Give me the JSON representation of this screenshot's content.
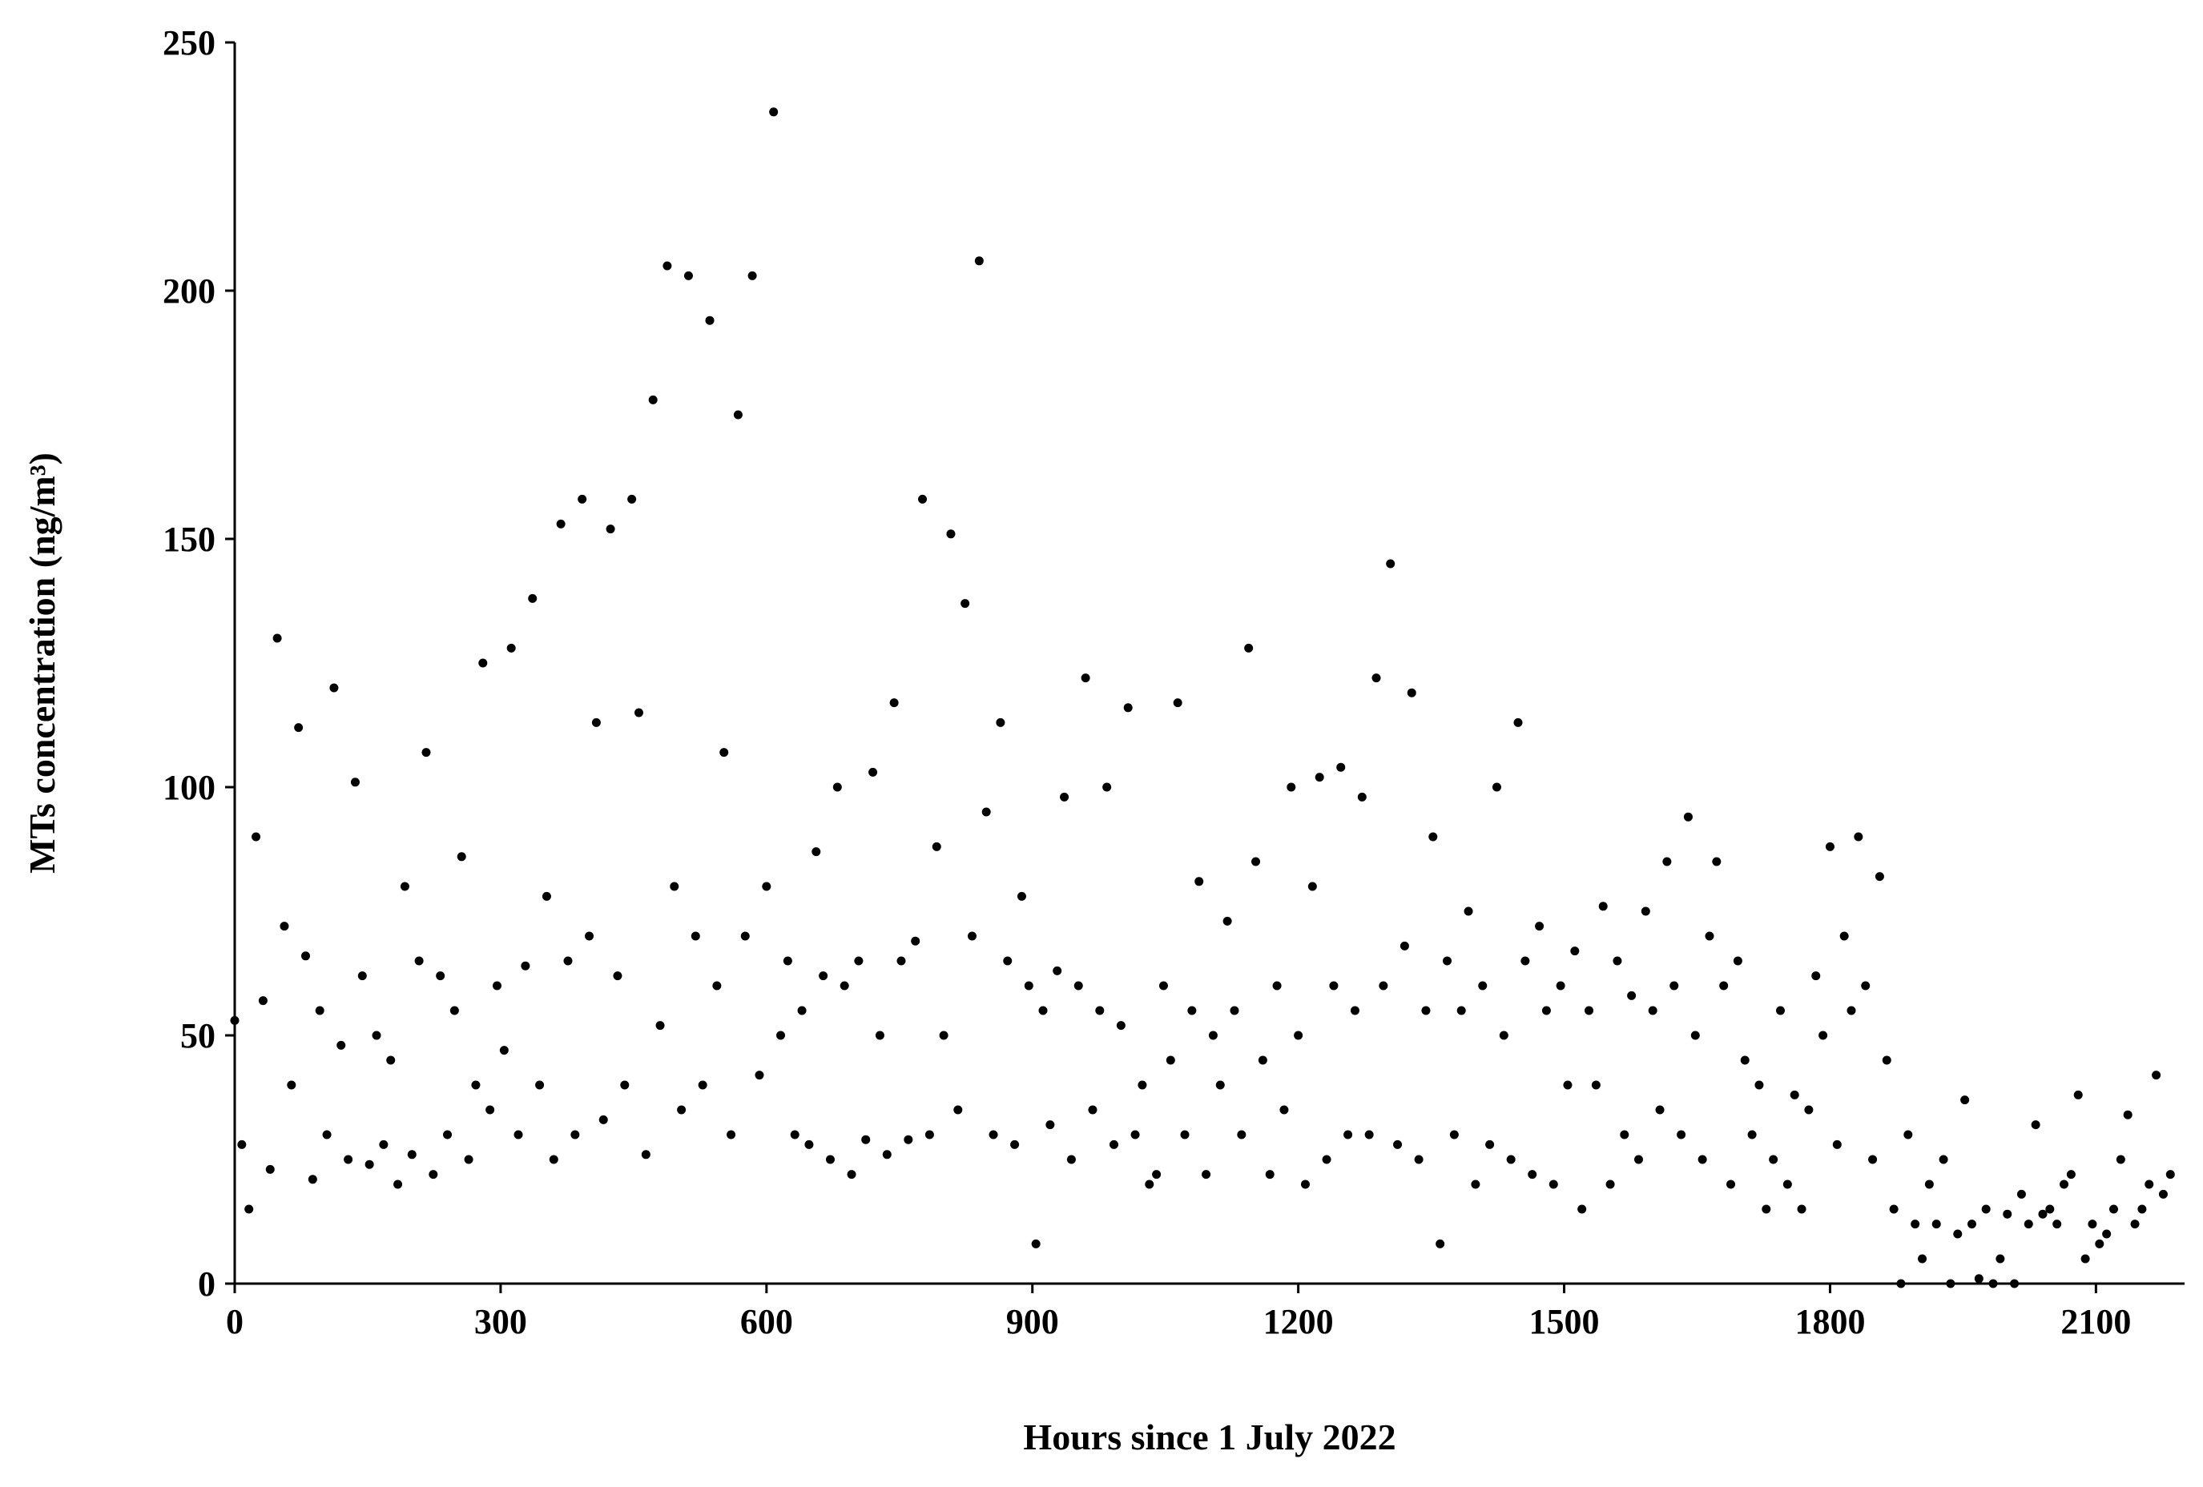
{
  "chart_data": {
    "type": "scatter",
    "xlabel": "Hours since 1 July 2022",
    "ylabel": "MTs concentration (ng/m³)",
    "color": "#000000",
    "xlim": [
      0,
      2200
    ],
    "ylim": [
      0,
      250
    ],
    "xticks": [
      0,
      300,
      600,
      900,
      1200,
      1500,
      1800,
      2100
    ],
    "yticks": [
      0,
      50,
      100,
      150,
      200,
      250
    ],
    "x": [
      0,
      8,
      16,
      24,
      32,
      40,
      48,
      56,
      64,
      72,
      80,
      88,
      96,
      104,
      112,
      120,
      128,
      136,
      144,
      152,
      160,
      168,
      176,
      184,
      192,
      200,
      208,
      216,
      224,
      232,
      240,
      248,
      256,
      264,
      272,
      280,
      288,
      296,
      304,
      312,
      320,
      328,
      336,
      344,
      352,
      360,
      368,
      376,
      384,
      392,
      400,
      408,
      416,
      424,
      432,
      440,
      448,
      456,
      464,
      472,
      480,
      488,
      496,
      504,
      512,
      520,
      528,
      536,
      544,
      552,
      560,
      568,
      576,
      584,
      592,
      600,
      608,
      616,
      624,
      632,
      640,
      648,
      656,
      664,
      672,
      680,
      688,
      696,
      704,
      712,
      720,
      728,
      736,
      744,
      752,
      760,
      768,
      776,
      784,
      792,
      800,
      808,
      816,
      824,
      832,
      840,
      848,
      856,
      864,
      872,
      880,
      888,
      896,
      904,
      912,
      920,
      928,
      936,
      944,
      952,
      960,
      968,
      976,
      984,
      992,
      1000,
      1008,
      1016,
      1024,
      1032,
      1040,
      1048,
      1056,
      1064,
      1072,
      1080,
      1088,
      1096,
      1104,
      1112,
      1120,
      1128,
      1136,
      1144,
      1152,
      1160,
      1168,
      1176,
      1184,
      1192,
      1200,
      1208,
      1216,
      1224,
      1232,
      1240,
      1248,
      1256,
      1264,
      1272,
      1280,
      1288,
      1296,
      1304,
      1312,
      1320,
      1328,
      1336,
      1344,
      1352,
      1360,
      1368,
      1376,
      1384,
      1392,
      1400,
      1408,
      1416,
      1424,
      1432,
      1440,
      1448,
      1456,
      1464,
      1472,
      1480,
      1488,
      1496,
      1504,
      1512,
      1520,
      1528,
      1536,
      1544,
      1552,
      1560,
      1568,
      1576,
      1584,
      1592,
      1600,
      1608,
      1616,
      1624,
      1632,
      1640,
      1648,
      1656,
      1664,
      1672,
      1680,
      1688,
      1696,
      1704,
      1712,
      1720,
      1728,
      1736,
      1744,
      1752,
      1760,
      1768,
      1776,
      1784,
      1792,
      1800,
      1808,
      1816,
      1824,
      1832,
      1840,
      1848,
      1856,
      1864,
      1872,
      1880,
      1888,
      1896,
      1904,
      1912,
      1920,
      1928,
      1936,
      1944,
      1952,
      1960,
      1968,
      1976,
      1984,
      1992,
      2000,
      2008,
      2016,
      2024,
      2032,
      2040,
      2048,
      2056,
      2064,
      2072,
      2080,
      2088,
      2096,
      2104,
      2112,
      2120,
      2128,
      2136,
      2144,
      2152,
      2160,
      2168,
      2176,
      2184
    ],
    "values": [
      53,
      28,
      15,
      90,
      57,
      23,
      130,
      72,
      40,
      112,
      66,
      21,
      55,
      30,
      120,
      48,
      25,
      101,
      62,
      24,
      50,
      28,
      45,
      20,
      80,
      26,
      65,
      107,
      22,
      62,
      30,
      55,
      86,
      25,
      40,
      125,
      35,
      60,
      47,
      128,
      30,
      64,
      138,
      40,
      78,
      25,
      153,
      65,
      30,
      158,
      70,
      113,
      33,
      152,
      62,
      40,
      158,
      115,
      26,
      178,
      52,
      205,
      80,
      35,
      203,
      70,
      40,
      194,
      60,
      107,
      30,
      175,
      70,
      203,
      42,
      80,
      236,
      50,
      65,
      30,
      55,
      28,
      87,
      62,
      25,
      100,
      60,
      22,
      65,
      29,
      103,
      50,
      26,
      117,
      65,
      29,
      69,
      158,
      30,
      88,
      50,
      151,
      35,
      137,
      70,
      206,
      95,
      30,
      113,
      65,
      28,
      78,
      60,
      8,
      55,
      32,
      63,
      98,
      25,
      60,
      122,
      35,
      55,
      100,
      28,
      52,
      116,
      30,
      40,
      20,
      22,
      60,
      45,
      117,
      30,
      55,
      81,
      22,
      50,
      40,
      73,
      55,
      30,
      128,
      85,
      45,
      22,
      60,
      35,
      100,
      50,
      20,
      80,
      102,
      25,
      60,
      104,
      30,
      55,
      98,
      30,
      122,
      60,
      145,
      28,
      68,
      119,
      25,
      55,
      90,
      8,
      65,
      30,
      55,
      75,
      20,
      60,
      28,
      100,
      50,
      25,
      113,
      65,
      22,
      72,
      55,
      20,
      60,
      40,
      67,
      15,
      55,
      40,
      76,
      20,
      65,
      30,
      58,
      25,
      75,
      55,
      35,
      85,
      60,
      30,
      94,
      50,
      25,
      70,
      85,
      60,
      20,
      65,
      45,
      30,
      40,
      15,
      25,
      55,
      20,
      38,
      15,
      35,
      62,
      50,
      88,
      28,
      70,
      55,
      90,
      60,
      25,
      82,
      45,
      15,
      0,
      30,
      12,
      5,
      20,
      12,
      25,
      0,
      10,
      37,
      12,
      1,
      15,
      0,
      5,
      14,
      0,
      18,
      12,
      32,
      14,
      15,
      12,
      20,
      22,
      38,
      5,
      12,
      8,
      10,
      15,
      25,
      34,
      12,
      15,
      20,
      42,
      18,
      22
    ]
  }
}
